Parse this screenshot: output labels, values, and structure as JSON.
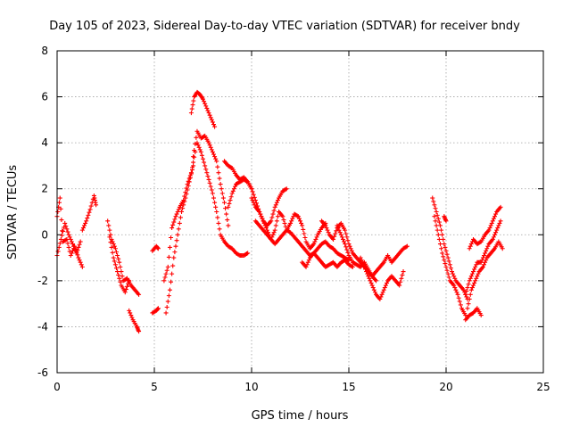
{
  "chart_data": {
    "type": "scatter",
    "title": "Day 105 of 2023, Sidereal Day-to-day VTEC variation (SDTVAR) for receiver bndy",
    "xlabel": "GPS time / hours",
    "ylabel": "SDTVAR / TECUs",
    "xlim": [
      0,
      25
    ],
    "ylim": [
      -6,
      8
    ],
    "xticks": [
      0,
      5,
      10,
      15,
      20,
      25
    ],
    "yticks": [
      -6,
      -4,
      -2,
      0,
      2,
      4,
      6,
      8
    ],
    "grid": true,
    "marker": "plus",
    "color": "#ff0000",
    "series": [
      {
        "name": "a1",
        "x": [
          0.0,
          0.15,
          0.3,
          0.5,
          0.7,
          0.9,
          1.1,
          1.3
        ],
        "y": [
          0.8,
          1.6,
          -0.3,
          -0.2,
          -0.9,
          -0.5,
          -1.0,
          -1.4
        ]
      },
      {
        "name": "a2",
        "x": [
          0.0,
          0.2,
          0.4,
          0.6,
          0.8,
          1.0,
          1.2
        ],
        "y": [
          -0.9,
          -0.2,
          0.5,
          0.0,
          -0.4,
          -0.8,
          -0.3
        ]
      },
      {
        "name": "b",
        "x": [
          1.3,
          1.5,
          1.7,
          1.9,
          2.0
        ],
        "y": [
          0.2,
          0.6,
          1.1,
          1.7,
          1.3
        ]
      },
      {
        "name": "c1",
        "x": [
          2.6,
          2.8,
          3.0,
          3.2,
          3.4,
          3.6,
          3.8,
          4.0,
          4.2
        ],
        "y": [
          0.6,
          -0.2,
          -0.6,
          -1.2,
          -2.0,
          -1.9,
          -2.2,
          -2.4,
          -2.6
        ]
      },
      {
        "name": "c2",
        "x": [
          2.7,
          2.9,
          3.1,
          3.3,
          3.5,
          3.7
        ],
        "y": [
          -0.1,
          -1.0,
          -1.6,
          -2.2,
          -2.5,
          -2.0
        ]
      },
      {
        "name": "c3",
        "x": [
          3.7,
          3.9,
          4.1,
          4.2
        ],
        "y": [
          -3.3,
          -3.7,
          -4.0,
          -4.2
        ]
      },
      {
        "name": "d1",
        "x": [
          4.9,
          5.1,
          5.2
        ],
        "y": [
          -3.4,
          -3.3,
          -3.2
        ]
      },
      {
        "name": "d2",
        "x": [
          4.9,
          5.1,
          5.2
        ],
        "y": [
          -0.7,
          -0.5,
          -0.6
        ]
      },
      {
        "name": "e1",
        "x": [
          5.6,
          5.8,
          6.0,
          6.2,
          6.4,
          6.6,
          6.8,
          7.0
        ],
        "y": [
          -3.4,
          -2.4,
          -1.0,
          0.0,
          1.0,
          1.6,
          2.3,
          3.0
        ]
      },
      {
        "name": "e2",
        "x": [
          5.5,
          5.7,
          5.9,
          6.1,
          6.3,
          6.5,
          6.7,
          6.9,
          7.1
        ],
        "y": [
          -2.0,
          -1.4,
          0.3,
          0.8,
          1.2,
          1.5,
          2.2,
          2.7,
          3.6
        ]
      },
      {
        "name": "f",
        "x": [
          6.9,
          7.05,
          7.2,
          7.35,
          7.5,
          7.7,
          7.9,
          8.1
        ],
        "y": [
          5.3,
          6.0,
          6.2,
          6.1,
          5.9,
          5.5,
          5.1,
          4.7
        ]
      },
      {
        "name": "g",
        "x": [
          7.0,
          7.2,
          7.4,
          7.6,
          7.8,
          8.0,
          8.2,
          8.4,
          8.6,
          8.8
        ],
        "y": [
          3.4,
          4.5,
          4.2,
          4.3,
          4.0,
          3.6,
          3.2,
          2.2,
          1.4,
          0.4
        ]
      },
      {
        "name": "h",
        "x": [
          7.2,
          7.4,
          7.6,
          7.8,
          8.0,
          8.2,
          8.4,
          8.6,
          8.8,
          9.0,
          9.2,
          9.4,
          9.6,
          9.8
        ],
        "y": [
          4.0,
          3.6,
          3.0,
          2.4,
          1.8,
          1.0,
          0.0,
          -0.3,
          -0.5,
          -0.6,
          -0.8,
          -0.9,
          -0.9,
          -0.8
        ]
      },
      {
        "name": "i",
        "x": [
          8.6,
          8.8,
          9.0,
          9.2,
          9.4,
          9.6,
          9.8,
          10.0
        ],
        "y": [
          3.2,
          3.0,
          2.9,
          2.6,
          2.4,
          2.5,
          2.3,
          2.0
        ]
      },
      {
        "name": "j",
        "x": [
          8.8,
          9.0,
          9.2,
          9.4,
          9.6,
          9.8,
          10.0,
          10.2,
          10.4,
          10.6,
          10.8,
          11.0,
          11.2,
          11.4,
          11.6,
          11.8
        ],
        "y": [
          1.2,
          1.8,
          2.2,
          2.3,
          2.4,
          2.3,
          2.0,
          1.5,
          1.0,
          0.6,
          0.4,
          0.6,
          1.2,
          1.6,
          1.9,
          2.0
        ]
      },
      {
        "name": "k",
        "x": [
          10.0,
          10.2,
          10.4,
          10.6,
          10.8,
          11.0,
          11.2,
          11.4,
          11.6,
          11.8,
          12.0,
          12.2,
          12.4,
          12.6,
          12.8,
          13.0,
          13.2,
          13.4,
          13.6,
          13.8
        ],
        "y": [
          1.6,
          1.2,
          1.0,
          0.6,
          0.2,
          -0.2,
          0.2,
          1.0,
          0.8,
          0.2,
          0.5,
          0.9,
          0.8,
          0.4,
          -0.3,
          -0.6,
          -0.4,
          0.0,
          0.3,
          0.5
        ]
      },
      {
        "name": "l",
        "x": [
          10.2,
          10.4,
          10.6,
          10.8,
          11.0,
          11.2,
          11.4,
          11.6,
          11.8,
          12.0,
          12.2,
          12.4,
          12.6,
          12.8,
          13.0,
          13.2,
          13.4,
          13.6,
          13.8,
          14.0,
          14.2,
          14.4,
          14.6,
          14.8,
          15.0
        ],
        "y": [
          0.6,
          0.4,
          0.2,
          0.0,
          -0.2,
          -0.4,
          -0.2,
          0.0,
          0.2,
          0.1,
          -0.1,
          -0.3,
          -0.5,
          -0.7,
          -0.9,
          -0.8,
          -0.6,
          -0.4,
          -0.3,
          -0.5,
          -0.6,
          -0.8,
          -0.9,
          -1.0,
          -1.1
        ]
      },
      {
        "name": "m",
        "x": [
          12.6,
          12.8,
          13.0,
          13.2,
          13.4,
          13.6,
          13.8,
          14.0,
          14.2,
          14.4,
          14.6,
          14.8,
          15.0,
          15.2
        ],
        "y": [
          -1.2,
          -1.4,
          -1.0,
          -0.8,
          -1.0,
          -1.2,
          -1.4,
          -1.3,
          -1.2,
          -1.4,
          -1.2,
          -1.1,
          -1.3,
          -1.4
        ]
      },
      {
        "name": "n",
        "x": [
          13.6,
          13.8,
          14.0,
          14.2,
          14.4,
          14.6,
          14.8,
          15.0,
          15.2,
          15.4,
          15.6,
          15.8,
          16.0,
          16.2,
          16.4
        ],
        "y": [
          0.6,
          0.4,
          0.0,
          -0.2,
          0.3,
          0.5,
          0.2,
          -0.4,
          -0.8,
          -1.0,
          -1.2,
          -1.4,
          -1.6,
          -1.8,
          -2.0
        ]
      },
      {
        "name": "o",
        "x": [
          14.4,
          14.6,
          14.8,
          15.0,
          15.2,
          15.4,
          15.6,
          15.8,
          16.0,
          16.2,
          16.4,
          16.6,
          16.8,
          17.0,
          17.2,
          17.4,
          17.6,
          17.8,
          18.0
        ],
        "y": [
          0.4,
          0.0,
          -0.4,
          -0.9,
          -1.2,
          -1.3,
          -1.4,
          -1.2,
          -1.5,
          -1.8,
          -1.6,
          -1.4,
          -1.2,
          -0.9,
          -1.2,
          -1.0,
          -0.8,
          -0.6,
          -0.5
        ]
      },
      {
        "name": "p",
        "x": [
          15.6,
          15.8,
          16.0,
          16.2,
          16.4,
          16.6,
          16.8,
          17.0,
          17.2,
          17.4,
          17.6,
          17.8
        ],
        "y": [
          -1.0,
          -1.4,
          -1.8,
          -2.2,
          -2.6,
          -2.8,
          -2.4,
          -2.0,
          -1.8,
          -2.0,
          -2.2,
          -1.6
        ]
      },
      {
        "name": "q1",
        "x": [
          19.3,
          19.5,
          19.7,
          19.9,
          20.1,
          20.3,
          20.5,
          20.7,
          20.9,
          21.1
        ],
        "y": [
          1.6,
          1.0,
          0.4,
          -0.4,
          -1.0,
          -1.6,
          -2.0,
          -2.2,
          -2.4,
          -2.8
        ]
      },
      {
        "name": "q2",
        "x": [
          19.4,
          19.6,
          19.8,
          20.0,
          20.2,
          20.4,
          20.6,
          20.8,
          21.0
        ],
        "y": [
          0.8,
          0.0,
          -0.8,
          -1.4,
          -2.0,
          -2.2,
          -2.6,
          -3.2,
          -3.5
        ]
      },
      {
        "name": "q3",
        "x": [
          19.9,
          20.0
        ],
        "y": [
          0.8,
          0.6
        ]
      },
      {
        "name": "r",
        "x": [
          21.0,
          21.2,
          21.4,
          21.6,
          21.8
        ],
        "y": [
          -3.7,
          -3.5,
          -3.4,
          -3.2,
          -3.5
        ]
      },
      {
        "name": "s1",
        "x": [
          21.2,
          21.4,
          21.6,
          21.8,
          22.0,
          22.2,
          22.4,
          22.6,
          22.8
        ],
        "y": [
          -0.6,
          -0.2,
          -0.4,
          -0.3,
          0.0,
          0.2,
          0.6,
          1.0,
          1.2
        ]
      },
      {
        "name": "s2",
        "x": [
          21.0,
          21.2,
          21.4,
          21.6,
          21.8,
          22.0,
          22.2,
          22.4,
          22.6,
          22.8
        ],
        "y": [
          -2.6,
          -2.0,
          -1.6,
          -1.2,
          -1.2,
          -0.8,
          -0.4,
          -0.2,
          0.2,
          0.6
        ]
      },
      {
        "name": "s3",
        "x": [
          21.1,
          21.3,
          21.5,
          21.7,
          21.9,
          22.1,
          22.3,
          22.5,
          22.7,
          22.9
        ],
        "y": [
          -3.2,
          -2.4,
          -2.0,
          -1.6,
          -1.4,
          -1.0,
          -0.8,
          -0.6,
          -0.3,
          -0.6
        ]
      }
    ]
  }
}
